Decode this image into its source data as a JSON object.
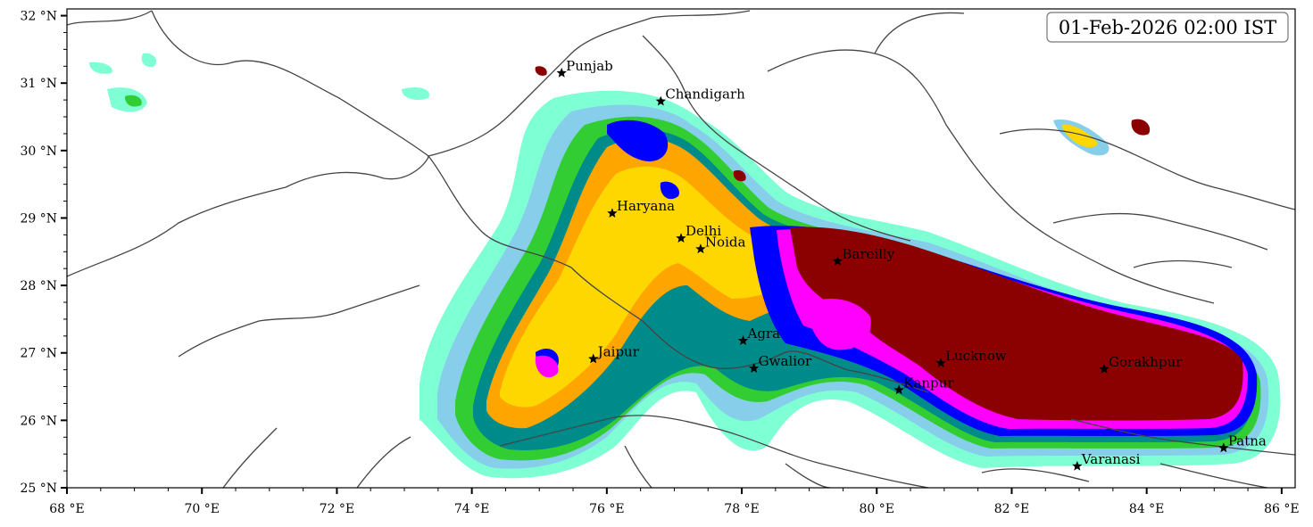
{
  "timestamp": "01-Feb-2026 02:00 IST",
  "axes": {
    "x_ticks": [
      "68 °E",
      "70 °E",
      "72 °E",
      "74 °E",
      "76 °E",
      "78 °E",
      "80 °E",
      "82 °E",
      "84 °E",
      "86 °E"
    ],
    "y_ticks": [
      "32 °N",
      "31 °N",
      "30 °N",
      "29 °N",
      "28 °N",
      "27 °N",
      "26 °N",
      "25 °N"
    ],
    "lon_range": [
      68,
      86.2
    ],
    "lat_range": [
      25,
      32.1
    ]
  },
  "cities": [
    {
      "name": "Punjab",
      "lon": 75.33,
      "lat": 31.15
    },
    {
      "name": "Chandigarh",
      "lon": 76.8,
      "lat": 30.73
    },
    {
      "name": "Haryana",
      "lon": 76.08,
      "lat": 29.07
    },
    {
      "name": "Delhi",
      "lon": 77.1,
      "lat": 28.7
    },
    {
      "name": "Noida",
      "lon": 77.39,
      "lat": 28.54
    },
    {
      "name": "Bareilly",
      "lon": 79.42,
      "lat": 28.36
    },
    {
      "name": "Agra",
      "lon": 78.02,
      "lat": 27.18
    },
    {
      "name": "Jaipur",
      "lon": 75.8,
      "lat": 26.91
    },
    {
      "name": "Gwalior",
      "lon": 78.18,
      "lat": 26.77
    },
    {
      "name": "Lucknow",
      "lon": 80.95,
      "lat": 26.85
    },
    {
      "name": "Kanpur",
      "lon": 80.33,
      "lat": 26.45
    },
    {
      "name": "Gorakhpur",
      "lon": 83.37,
      "lat": 26.76
    },
    {
      "name": "Patna",
      "lon": 85.14,
      "lat": 25.59
    },
    {
      "name": "Varanasi",
      "lon": 82.97,
      "lat": 25.32
    }
  ],
  "colors": {
    "level1": "#7fffd4",
    "level2": "#87ceeb",
    "level3": "#32cd32",
    "level4": "#008b8b",
    "level5": "#ffa500",
    "level6": "#ffd700",
    "level7": "#0000ff",
    "level8": "#ff00ff",
    "level9": "#8b0000",
    "border": "#444444"
  }
}
